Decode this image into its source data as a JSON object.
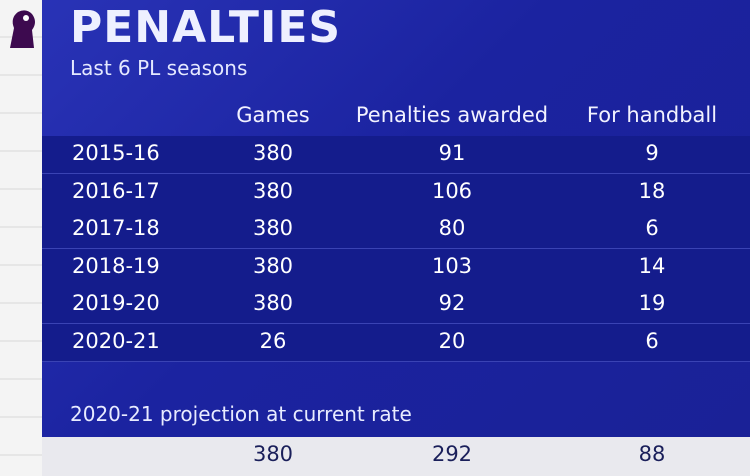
{
  "header": {
    "title": "PENALTIES",
    "subtitle": "Last 6 PL seasons"
  },
  "table": {
    "columns": [
      "Games",
      "Penalties awarded",
      "For handball"
    ],
    "rows": [
      {
        "season": "2015-16",
        "values": [
          380,
          91,
          9
        ]
      },
      {
        "season": "2016-17",
        "values": [
          380,
          106,
          18
        ]
      },
      {
        "season": "2017-18",
        "values": [
          380,
          80,
          6
        ]
      },
      {
        "season": "2018-19",
        "values": [
          380,
          103,
          14
        ]
      },
      {
        "season": "2019-20",
        "values": [
          380,
          92,
          19
        ]
      },
      {
        "season": "2020-21",
        "values": [
          26,
          20,
          6
        ]
      }
    ]
  },
  "projection": {
    "label": "2020-21 projection at current rate",
    "values": [
      380,
      292,
      88
    ]
  }
}
